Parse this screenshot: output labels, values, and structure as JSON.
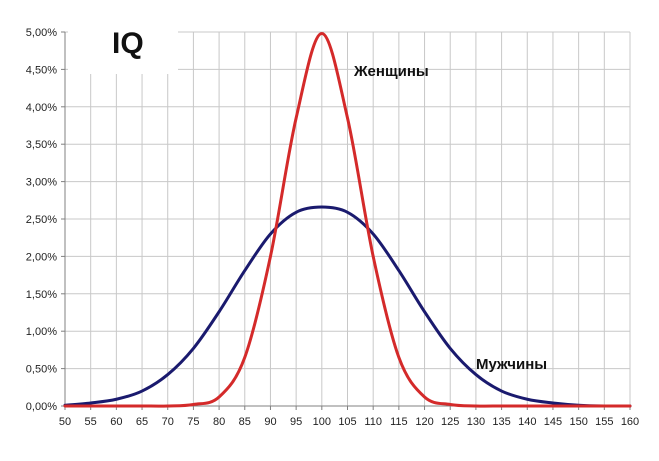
{
  "chart_data": {
    "type": "line",
    "title": "IQ",
    "xlabel": "",
    "ylabel": "",
    "xlim": [
      50,
      160
    ],
    "ylim": [
      0,
      5
    ],
    "x_ticks": [
      50,
      55,
      60,
      65,
      70,
      75,
      80,
      85,
      90,
      95,
      100,
      105,
      110,
      115,
      120,
      125,
      130,
      135,
      140,
      145,
      150,
      155,
      160
    ],
    "x_tick_labels": [
      "50",
      "55",
      "60",
      "65",
      "70",
      "75",
      "80",
      "85",
      "90",
      "95",
      "100",
      "105",
      "110",
      "115",
      "120",
      "125",
      "130",
      "135",
      "140",
      "145",
      "150",
      "155",
      "160"
    ],
    "y_ticks": [
      0,
      0.5,
      1,
      1.5,
      2,
      2.5,
      3,
      3.5,
      4,
      4.5,
      5
    ],
    "y_tick_labels": [
      "0,00%",
      "0,50%",
      "1,00%",
      "1,50%",
      "2,00%",
      "2,50%",
      "3,00%",
      "3,50%",
      "4,00%",
      "4,50%",
      "5,00%"
    ],
    "grid": true,
    "legend": "none",
    "x": [
      50,
      55,
      60,
      65,
      70,
      75,
      80,
      85,
      90,
      95,
      100,
      105,
      110,
      115,
      120,
      125,
      130,
      135,
      140,
      145,
      150,
      155,
      160
    ],
    "series": [
      {
        "name": "Женщины",
        "color": "#d42a2a",
        "values": [
          0,
          0,
          0,
          0,
          0,
          0.02,
          0.12,
          0.65,
          2.0,
          3.85,
          4.98,
          3.85,
          2.0,
          0.65,
          0.12,
          0.02,
          0,
          0,
          0,
          0,
          0,
          0,
          0
        ]
      },
      {
        "name": "Мужчины",
        "color": "#1a1a6e",
        "values": [
          0.01,
          0.04,
          0.09,
          0.2,
          0.42,
          0.77,
          1.26,
          1.81,
          2.3,
          2.59,
          2.66,
          2.59,
          2.3,
          1.81,
          1.26,
          0.77,
          0.42,
          0.2,
          0.09,
          0.04,
          0.01,
          0,
          0
        ]
      }
    ]
  }
}
